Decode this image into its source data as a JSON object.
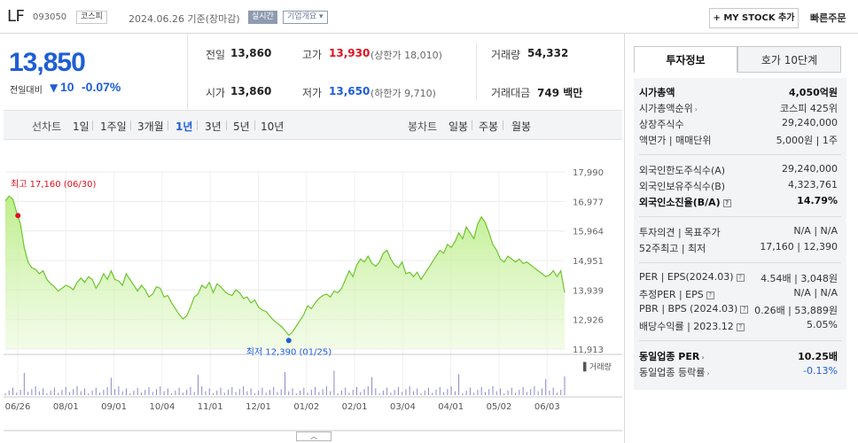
{
  "header": {
    "name": "LF",
    "code": "093050",
    "market": "코스피",
    "date": "2024.06.26 기준(장마감)",
    "realtime": "실시간",
    "company_overview": "기업개요 ▾",
    "my_stock": "+ MY STOCK 추가",
    "quick_order": "빠른주문"
  },
  "price": {
    "current": "13,850",
    "change_label": "전일대비",
    "change_arrow": "▼",
    "change_value": "10",
    "change_rate": "-0.07%"
  },
  "quote": {
    "prev_label": "전일",
    "prev": "13,860",
    "high_label": "고가",
    "high": "13,930",
    "upper_limit": "(상한가 18,010)",
    "volume_label": "거래량",
    "volume": "54,332",
    "open_label": "시가",
    "open": "13,860",
    "low_label": "저가",
    "low": "13,650",
    "lower_limit": "(하한가 9,710)",
    "amount_label": "거래대금",
    "amount": "749 백만"
  },
  "periods": {
    "line_label": "선차트",
    "items": [
      "1일",
      "1주일",
      "3개월",
      "1년",
      "3년",
      "5년",
      "10년"
    ],
    "active": "1년",
    "candle_label": "봉차트",
    "candles": [
      "일봉",
      "주봉",
      "월봉"
    ]
  },
  "chart_data": {
    "type": "area",
    "x_ticks": [
      "06/26",
      "08/01",
      "09/01",
      "10/04",
      "11/01",
      "12/01",
      "01/02",
      "02/01",
      "03/04",
      "04/01",
      "05/02",
      "06/03"
    ],
    "y_ticks": [
      "17,990",
      "16,977",
      "15,964",
      "14,951",
      "13,939",
      "12,926",
      "11,913"
    ],
    "ylim": [
      11913,
      17990
    ],
    "high_label": "최고 17,160 (06/30)",
    "low_label": "최저 12,390 (01/25)",
    "volume_label": "거래량",
    "series": [
      {
        "values": [
          17000,
          17160,
          17050,
          16600,
          16200,
          15400,
          14900,
          14700,
          14650,
          14500,
          14600,
          14300,
          14150,
          14050,
          13900,
          14000,
          14100,
          14050,
          13950,
          14200,
          14350,
          14200,
          14400,
          14300,
          14000,
          14200,
          14500,
          14300,
          14600,
          14300,
          14250,
          14100,
          14500,
          14300,
          14100,
          13900,
          14100,
          13950,
          13700,
          13800,
          14050,
          14000,
          13700,
          13750,
          13500,
          13300,
          13100,
          12950,
          13050,
          13350,
          13700,
          13800,
          14100,
          14000,
          14200,
          13850,
          14150,
          14050,
          13900,
          13800,
          13750,
          13950,
          13850,
          13650,
          13700,
          13500,
          13600,
          13350,
          13250,
          13200,
          13050,
          12900,
          12800,
          12700,
          12550,
          12390,
          12500,
          12700,
          12900,
          13100,
          13400,
          13300,
          13500,
          13650,
          13750,
          13800,
          13700,
          13900,
          13850,
          14000,
          14300,
          14600,
          14400,
          14800,
          15000,
          14900,
          15100,
          14850,
          14750,
          14900,
          15200,
          15300,
          15000,
          14800,
          14700,
          14900,
          14500,
          14550,
          14400,
          14550,
          14300,
          14500,
          14700,
          14900,
          15100,
          15300,
          15200,
          15500,
          15400,
          15600,
          15900,
          15700,
          16100,
          15900,
          15700,
          16200,
          16450,
          16250,
          15900,
          15500,
          15300,
          15000,
          14900,
          15100,
          15000,
          14900,
          15000,
          14850,
          14900,
          14800,
          14700,
          14600,
          14500,
          14400,
          14450,
          14600,
          14400,
          14600,
          13850
        ]
      }
    ]
  },
  "side": {
    "tabs": [
      "투자정보",
      "호가 10단계"
    ],
    "market_cap_label": "시가총액",
    "market_cap": "4,050억원",
    "rank_label": "시가총액순위",
    "rank": "코스피 425위",
    "shares_label": "상장주식수",
    "shares": "29,240,000",
    "par_label": "액면가 | 매매단위",
    "par": "5,000원  |  1주",
    "foreign_limit_label": "외국인한도주식수(A)",
    "foreign_limit": "29,240,000",
    "foreign_hold_label": "외국인보유주식수(B)",
    "foreign_hold": "4,323,761",
    "foreign_rate_label": "외국인소진율(B/A)",
    "foreign_rate": "14.79%",
    "opinion_label": "투자의견  |  목표주가",
    "opinion": "N/A  |  N/A",
    "week52_label": "52주최고  |  최저",
    "week52": "17,160  |  12,390",
    "per_label": "PER  |  EPS(2024.03)",
    "per": "4.54배  |  3,048원",
    "est_per_label": "추정PER  |  EPS",
    "est_per": "N/A  |  N/A",
    "pbr_label": "PBR  |  BPS (2024.03)",
    "pbr": "0.26배  |  53,889원",
    "div_label": "배당수익률  |  2023.12",
    "div": "5.05%",
    "peer_per_label": "동일업종 PER",
    "peer_per": "10.25배",
    "peer_rate_label": "동일업종 등락률",
    "peer_rate": "-0.13%"
  }
}
